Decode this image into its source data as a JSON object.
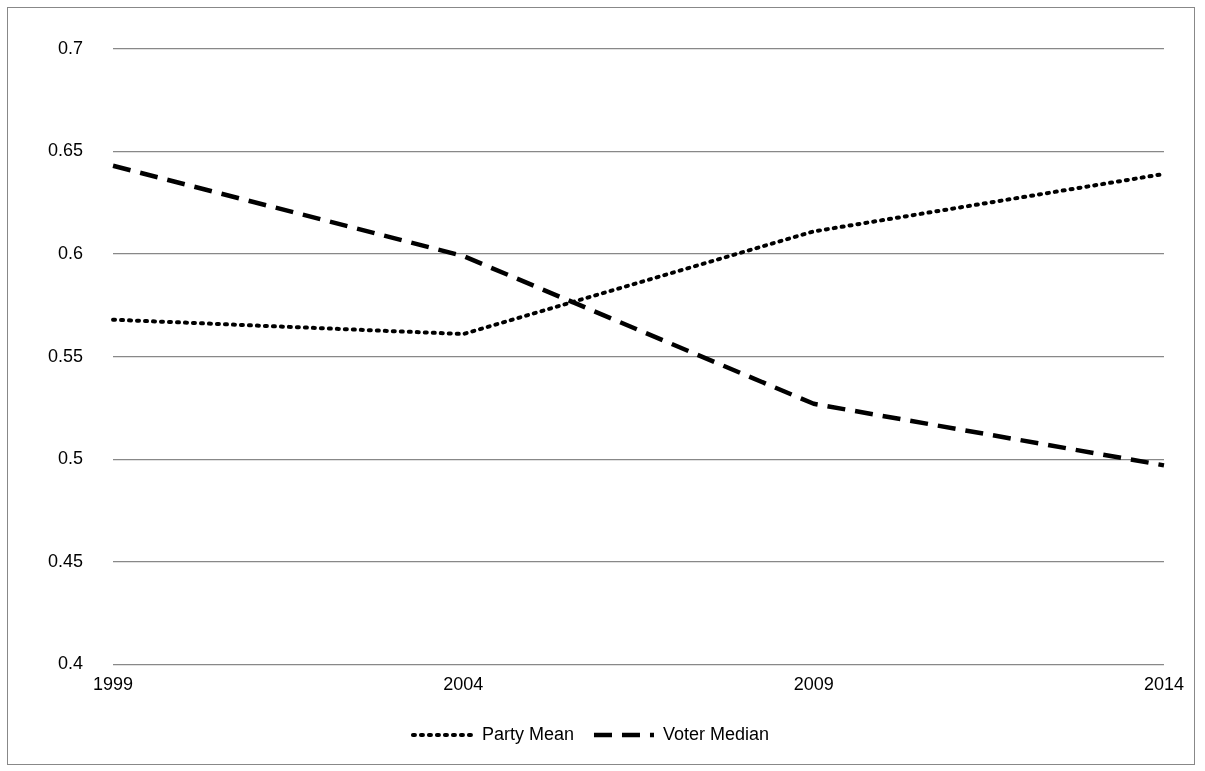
{
  "chart_data": {
    "type": "line",
    "categories": [
      "1999",
      "2004",
      "2009",
      "2014"
    ],
    "series": [
      {
        "name": "Party Mean",
        "color": "#000000",
        "line_style": "dotted",
        "values": [
          0.568,
          0.561,
          0.611,
          0.639
        ]
      },
      {
        "name": "Voter Median",
        "color": "#000000",
        "line_style": "dashed",
        "values": [
          0.643,
          0.599,
          0.527,
          0.497
        ]
      }
    ],
    "ylim": [
      0.4,
      0.7
    ],
    "yticks": [
      0.4,
      0.45,
      0.5,
      0.55,
      0.6,
      0.65,
      0.7
    ],
    "grid": "y",
    "legend": "bottom",
    "marker": "none"
  }
}
